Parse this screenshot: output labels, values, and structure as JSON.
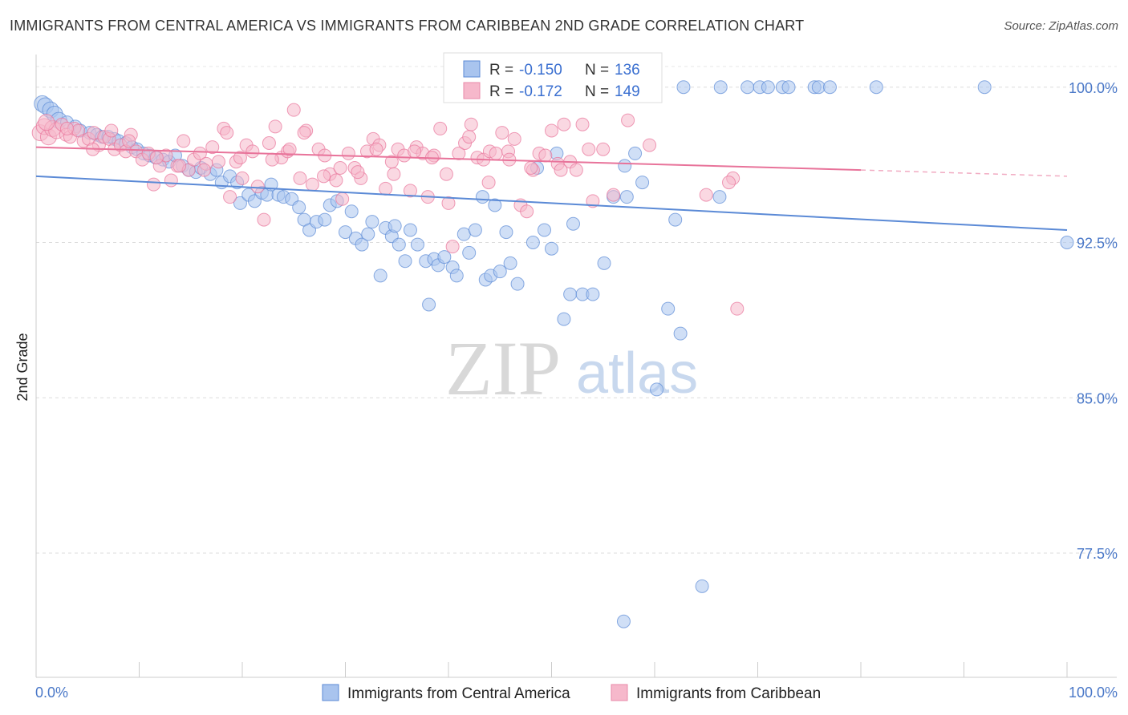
{
  "title": "IMMIGRANTS FROM CENTRAL AMERICA VS IMMIGRANTS FROM CARIBBEAN 2ND GRADE CORRELATION CHART",
  "source": "Source: ZipAtlas.com",
  "watermark": {
    "zip": "ZIP",
    "atlas": "atlas"
  },
  "legend": {
    "r_label": "R =",
    "n_label": "N =",
    "rows": [
      {
        "r": "-0.150",
        "n": "136",
        "fill": "#a9c4ee",
        "stroke": "#5b8ad6"
      },
      {
        "r": "-0.172",
        "n": "149",
        "fill": "#f6b8cb",
        "stroke": "#e88aa8"
      }
    ]
  },
  "bottom_legend": [
    "Immigrants from Central America",
    "Immigrants from Caribbean"
  ],
  "chart_data": {
    "type": "scatter",
    "title": "IMMIGRANTS FROM CENTRAL AMERICA VS IMMIGRANTS FROM CARIBBEAN 2ND GRADE CORRELATION CHART",
    "xlabel": "",
    "ylabel": "2nd Grade",
    "xlim": [
      0,
      100
    ],
    "ylim": [
      71.5,
      101.5
    ],
    "x_tick_labels": [
      "0.0%",
      "100.0%"
    ],
    "y_ticks": [
      77.5,
      85.0,
      92.5,
      100.0
    ],
    "y_tick_labels": [
      "77.5%",
      "85.0%",
      "92.5%",
      "100.0%"
    ],
    "grid": true,
    "legend_position": "top-center",
    "series": [
      {
        "name": "Immigrants from Central America",
        "color": "#5b8ad6",
        "fill": "#a9c4ee",
        "trend": {
          "x0": 0,
          "y0": 95.7,
          "x1": 100,
          "y1": 93.1
        },
        "points": [
          [
            0.6,
            99.2
          ],
          [
            0.9,
            99.1
          ],
          [
            1.4,
            98.9
          ],
          [
            1.8,
            98.7
          ],
          [
            2.2,
            98.4
          ],
          [
            3.0,
            98.3
          ],
          [
            3.8,
            98.1
          ],
          [
            4.3,
            97.9
          ],
          [
            5.2,
            97.8
          ],
          [
            5.9,
            97.7
          ],
          [
            6.4,
            97.6
          ],
          [
            7.0,
            97.6
          ],
          [
            7.6,
            97.5
          ],
          [
            8.0,
            97.4
          ],
          [
            8.7,
            97.3
          ],
          [
            9.3,
            97.1
          ],
          [
            9.8,
            97.0
          ],
          [
            10.4,
            96.8
          ],
          [
            11.0,
            96.7
          ],
          [
            11.6,
            96.6
          ],
          [
            12.3,
            96.5
          ],
          [
            12.9,
            96.4
          ],
          [
            13.5,
            96.7
          ],
          [
            14.2,
            96.2
          ],
          [
            14.8,
            96.0
          ],
          [
            15.5,
            95.9
          ],
          [
            16.0,
            96.1
          ],
          [
            16.9,
            95.8
          ],
          [
            17.5,
            96.0
          ],
          [
            18.0,
            95.4
          ],
          [
            18.8,
            95.7
          ],
          [
            19.5,
            95.4
          ],
          [
            19.8,
            94.4
          ],
          [
            20.6,
            94.8
          ],
          [
            21.2,
            94.5
          ],
          [
            21.9,
            94.9
          ],
          [
            22.4,
            94.8
          ],
          [
            22.8,
            95.3
          ],
          [
            23.5,
            94.8
          ],
          [
            24.0,
            94.7
          ],
          [
            24.8,
            94.6
          ],
          [
            25.5,
            94.2
          ],
          [
            26.0,
            93.6
          ],
          [
            26.5,
            93.1
          ],
          [
            27.2,
            93.5
          ],
          [
            28.0,
            93.6
          ],
          [
            28.5,
            94.3
          ],
          [
            29.2,
            94.5
          ],
          [
            30.0,
            93.0
          ],
          [
            30.6,
            94.0
          ],
          [
            31.0,
            92.7
          ],
          [
            31.6,
            92.4
          ],
          [
            32.2,
            92.9
          ],
          [
            32.6,
            93.5
          ],
          [
            33.4,
            90.9
          ],
          [
            33.9,
            93.2
          ],
          [
            34.5,
            92.8
          ],
          [
            34.8,
            93.3
          ],
          [
            35.2,
            92.4
          ],
          [
            35.8,
            91.6
          ],
          [
            36.3,
            93.1
          ],
          [
            37.0,
            92.4
          ],
          [
            37.8,
            91.6
          ],
          [
            38.1,
            89.5
          ],
          [
            38.6,
            91.7
          ],
          [
            39.0,
            91.4
          ],
          [
            39.6,
            91.8
          ],
          [
            40.4,
            91.3
          ],
          [
            40.8,
            90.9
          ],
          [
            41.5,
            92.9
          ],
          [
            42.0,
            92.0
          ],
          [
            42.6,
            93.1
          ],
          [
            43.3,
            94.7
          ],
          [
            43.6,
            90.7
          ],
          [
            44.1,
            90.9
          ],
          [
            44.5,
            94.3
          ],
          [
            45.0,
            91.1
          ],
          [
            45.6,
            93.0
          ],
          [
            46.0,
            91.5
          ],
          [
            46.7,
            90.5
          ],
          [
            48.2,
            92.5
          ],
          [
            48.6,
            96.1
          ],
          [
            49.3,
            93.1
          ],
          [
            50.0,
            92.2
          ],
          [
            50.5,
            96.8
          ],
          [
            51.2,
            88.8
          ],
          [
            51.8,
            90.0
          ],
          [
            52.1,
            93.4
          ],
          [
            53.0,
            90.0
          ],
          [
            54.0,
            90.0
          ],
          [
            55.1,
            91.5
          ],
          [
            56.0,
            94.7
          ],
          [
            57.1,
            96.2
          ],
          [
            57.3,
            94.7
          ],
          [
            58.1,
            96.8
          ],
          [
            58.8,
            95.4
          ],
          [
            60.2,
            85.4
          ],
          [
            61.3,
            89.3
          ],
          [
            62.0,
            93.6
          ],
          [
            62.5,
            88.1
          ],
          [
            64.6,
            75.9
          ],
          [
            66.3,
            94.7
          ],
          [
            57.0,
            74.2
          ],
          [
            47.0,
            100.0
          ],
          [
            47.3,
            100.0
          ],
          [
            48.2,
            100.0
          ],
          [
            50.0,
            100.0
          ],
          [
            51.5,
            100.0
          ],
          [
            52.5,
            100.0
          ],
          [
            53.0,
            100.0
          ],
          [
            62.8,
            100.0
          ],
          [
            66.4,
            100.0
          ],
          [
            69.0,
            100.0
          ],
          [
            70.2,
            100.0
          ],
          [
            71.0,
            100.0
          ],
          [
            72.4,
            100.0
          ],
          [
            73.0,
            100.0
          ],
          [
            75.5,
            100.0
          ],
          [
            75.9,
            100.0
          ],
          [
            77.0,
            100.0
          ],
          [
            81.5,
            100.0
          ],
          [
            92.0,
            100.0
          ],
          [
            100.0,
            92.5
          ]
        ]
      },
      {
        "name": "Immigrants from Caribbean",
        "color": "#e8739a",
        "fill": "#f6b8cb",
        "trend": {
          "x0": 0,
          "y0": 97.1,
          "x1": 80,
          "y1": 96.0,
          "dashed_to_x": 100,
          "dashed_to_y": 95.7
        },
        "points": [
          [
            0.4,
            97.8
          ],
          [
            0.8,
            98.1
          ],
          [
            1.2,
            97.6
          ],
          [
            1.6,
            98.0
          ],
          [
            2.0,
            97.9
          ],
          [
            2.5,
            98.2
          ],
          [
            2.9,
            97.7
          ],
          [
            3.3,
            97.6
          ],
          [
            3.7,
            98.0
          ],
          [
            4.1,
            97.9
          ],
          [
            4.6,
            97.4
          ],
          [
            5.1,
            97.5
          ],
          [
            5.6,
            97.8
          ],
          [
            6.1,
            97.2
          ],
          [
            6.6,
            97.6
          ],
          [
            7.1,
            97.5
          ],
          [
            7.6,
            97.0
          ],
          [
            8.2,
            97.2
          ],
          [
            8.7,
            96.9
          ],
          [
            9.2,
            97.7
          ],
          [
            9.7,
            96.9
          ],
          [
            10.3,
            96.5
          ],
          [
            10.9,
            96.8
          ],
          [
            11.4,
            95.3
          ],
          [
            12.0,
            96.2
          ],
          [
            12.6,
            96.7
          ],
          [
            13.1,
            95.5
          ],
          [
            13.7,
            96.2
          ],
          [
            14.3,
            97.4
          ],
          [
            14.8,
            96.0
          ],
          [
            15.3,
            96.5
          ],
          [
            15.9,
            96.8
          ],
          [
            16.5,
            96.3
          ],
          [
            17.1,
            97.1
          ],
          [
            17.7,
            96.4
          ],
          [
            18.2,
            98.0
          ],
          [
            18.8,
            94.7
          ],
          [
            19.4,
            96.4
          ],
          [
            19.8,
            96.6
          ],
          [
            20.4,
            97.2
          ],
          [
            21.0,
            96.9
          ],
          [
            21.5,
            95.2
          ],
          [
            22.1,
            93.6
          ],
          [
            22.6,
            97.3
          ],
          [
            23.2,
            98.1
          ],
          [
            23.8,
            96.6
          ],
          [
            24.4,
            96.9
          ],
          [
            25.0,
            98.9
          ],
          [
            25.6,
            95.6
          ],
          [
            26.2,
            97.9
          ],
          [
            26.8,
            95.3
          ],
          [
            27.4,
            97.0
          ],
          [
            28.0,
            96.7
          ],
          [
            28.5,
            95.8
          ],
          [
            29.1,
            95.5
          ],
          [
            29.7,
            94.6
          ],
          [
            30.3,
            96.8
          ],
          [
            30.9,
            96.1
          ],
          [
            31.5,
            95.6
          ],
          [
            32.1,
            96.9
          ],
          [
            32.7,
            97.5
          ],
          [
            33.3,
            97.2
          ],
          [
            33.9,
            95.1
          ],
          [
            34.5,
            96.4
          ],
          [
            35.1,
            97.0
          ],
          [
            35.7,
            96.7
          ],
          [
            36.3,
            95.0
          ],
          [
            36.9,
            97.1
          ],
          [
            37.5,
            96.8
          ],
          [
            38.0,
            94.7
          ],
          [
            38.6,
            96.7
          ],
          [
            39.2,
            98.0
          ],
          [
            39.8,
            95.8
          ],
          [
            40.4,
            92.3
          ],
          [
            41.0,
            96.8
          ],
          [
            41.6,
            97.3
          ],
          [
            42.2,
            98.2
          ],
          [
            42.8,
            96.6
          ],
          [
            43.4,
            96.5
          ],
          [
            44.0,
            96.9
          ],
          [
            44.6,
            96.8
          ],
          [
            45.2,
            97.8
          ],
          [
            45.8,
            96.9
          ],
          [
            46.4,
            97.5
          ],
          [
            47.0,
            94.3
          ],
          [
            47.6,
            94.0
          ],
          [
            48.2,
            96.0
          ],
          [
            48.8,
            96.8
          ],
          [
            49.4,
            96.7
          ],
          [
            50.0,
            97.9
          ],
          [
            50.6,
            96.3
          ],
          [
            51.2,
            98.2
          ],
          [
            51.8,
            96.4
          ],
          [
            52.4,
            96.0
          ],
          [
            53.0,
            98.2
          ],
          [
            54.0,
            94.5
          ],
          [
            55.0,
            97.0
          ],
          [
            56.0,
            94.8
          ],
          [
            57.4,
            98.4
          ],
          [
            65.0,
            94.8
          ],
          [
            67.6,
            95.6
          ],
          [
            68.0,
            89.3
          ],
          [
            67.2,
            95.4
          ],
          [
            1.0,
            98.3
          ],
          [
            3.0,
            98.0
          ],
          [
            5.5,
            97.0
          ],
          [
            7.3,
            97.9
          ],
          [
            9.0,
            97.4
          ],
          [
            11.7,
            96.6
          ],
          [
            13.9,
            96.2
          ],
          [
            16.3,
            96.0
          ],
          [
            18.5,
            97.8
          ],
          [
            20.0,
            95.6
          ],
          [
            22.9,
            96.5
          ],
          [
            24.6,
            97.0
          ],
          [
            26.0,
            97.8
          ],
          [
            27.9,
            95.7
          ],
          [
            29.5,
            96.1
          ],
          [
            31.2,
            95.9
          ],
          [
            33.0,
            97.0
          ],
          [
            34.7,
            95.8
          ],
          [
            36.7,
            96.9
          ],
          [
            38.4,
            96.6
          ],
          [
            40.0,
            94.4
          ],
          [
            42.0,
            97.6
          ],
          [
            43.9,
            95.4
          ],
          [
            45.9,
            96.5
          ],
          [
            48.0,
            96.1
          ],
          [
            50.9,
            96.0
          ],
          [
            53.6,
            97.0
          ],
          [
            59.5,
            97.2
          ]
        ]
      }
    ]
  }
}
